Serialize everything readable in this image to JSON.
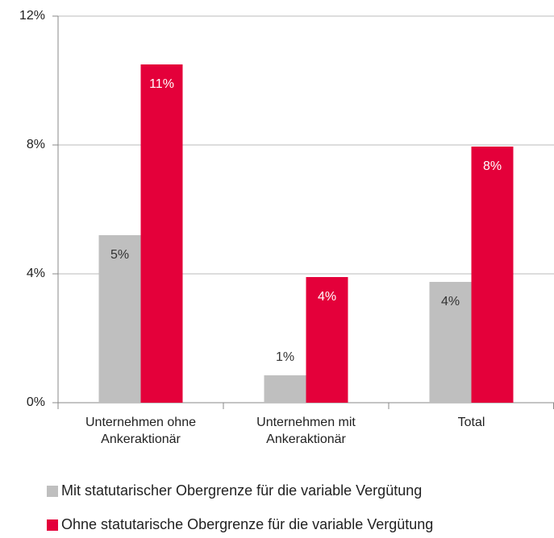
{
  "chart_data": {
    "type": "bar",
    "categories": [
      [
        "Unternehmen ohne",
        "Ankeraktionär"
      ],
      [
        "Unternehmen mit",
        "Ankeraktionär"
      ],
      [
        "Total"
      ]
    ],
    "series": [
      {
        "name": "Mit statutarischer Obergrenze für die variable Vergütung",
        "color": "#bfbfbf",
        "label_color": "#333333",
        "values": [
          5.2,
          0.85,
          3.75
        ],
        "value_labels": [
          "5%",
          "1%",
          "4%"
        ]
      },
      {
        "name": "Ohne statutarische Obergrenze für die variable Vergütung",
        "color": "#e4003a",
        "label_color": "#ffffff",
        "values": [
          10.5,
          3.9,
          7.95
        ],
        "value_labels": [
          "11%",
          "4%",
          "8%"
        ]
      }
    ],
    "ylim": [
      0,
      12
    ],
    "yticks": [
      {
        "value": 0,
        "label": "0%"
      },
      {
        "value": 4,
        "label": "4%"
      },
      {
        "value": 8,
        "label": "8%"
      },
      {
        "value": 12,
        "label": "12%"
      }
    ],
    "grid": true,
    "legend": "bottom"
  }
}
